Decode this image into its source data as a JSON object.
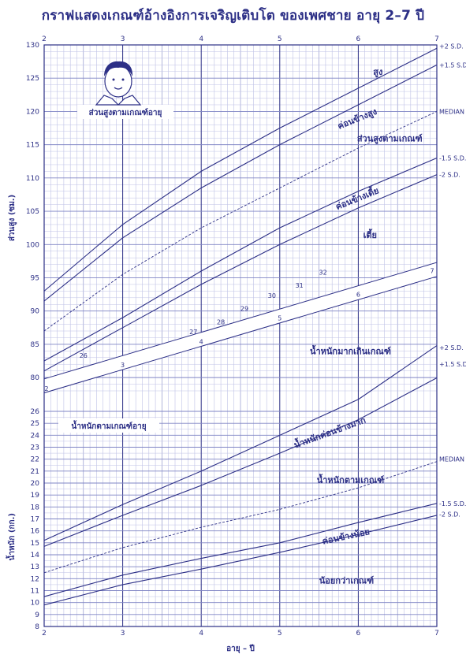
{
  "title": "กราฟแสดงเกณฑ์อ้างอิงการเจริญเติบโต ของเพศชาย อายุ 2–7 ปี",
  "colors": {
    "ink": "#2c2f86",
    "grid": "#7f84c4",
    "minor": "#bfc2e6",
    "paper": "#ffffff"
  },
  "chart_data": [
    {
      "type": "line",
      "panel": "height",
      "title": "ส่วนสูงตามเกณฑ์อายุ",
      "ylabel": "ส่วนสูง (ซม.)",
      "xlabel": "",
      "xlim": [
        2,
        7
      ],
      "ylim": [
        78,
        130
      ],
      "x_ticks": [
        "2",
        "3",
        "4",
        "5",
        "6",
        "7"
      ],
      "y_ticks": [
        "80",
        "85",
        "90",
        "95",
        "100",
        "105",
        "110",
        "115",
        "120",
        "125",
        "130"
      ],
      "x": [
        2,
        3,
        4,
        5,
        6,
        7
      ],
      "series": [
        {
          "name": "+2 S.D.",
          "values": [
            93.0,
            103.0,
            111.0,
            117.5,
            123.5,
            129.5
          ],
          "style": "solid"
        },
        {
          "name": "+1.5 S.D.",
          "values": [
            91.5,
            101.0,
            108.5,
            115.0,
            121.0,
            127.0
          ],
          "style": "solid"
        },
        {
          "name": "MEDIAN",
          "values": [
            87.0,
            95.5,
            102.5,
            108.5,
            114.5,
            120.0
          ],
          "style": "dashed"
        },
        {
          "name": "-1.5 S.D.",
          "values": [
            82.5,
            89.0,
            96.0,
            102.5,
            108.0,
            113.0
          ],
          "style": "solid"
        },
        {
          "name": "-2 S.D.",
          "values": [
            81.0,
            87.5,
            94.0,
            100.0,
            105.5,
            110.5
          ],
          "style": "solid"
        }
      ],
      "zones": [
        "สูง",
        "ค่อนข้างสูง",
        "ส่วนสูงตามเกณฑ์",
        "ค่อนข้างเตี้ย",
        "เตี้ย"
      ]
    },
    {
      "type": "line",
      "panel": "weight",
      "title": "น้ำหนักตามเกณฑ์อายุ",
      "ylabel": "น้ำหนัก (กก.)",
      "xlabel": "อายุ – ปี",
      "xlim": [
        2,
        7
      ],
      "ylim": [
        8,
        32
      ],
      "x_ticks": [
        "2",
        "3",
        "4",
        "5",
        "6",
        "7"
      ],
      "y_ticks": [
        "8",
        "9",
        "10",
        "11",
        "12",
        "13",
        "14",
        "15",
        "16",
        "17",
        "18",
        "19",
        "20",
        "21",
        "22",
        "23",
        "24",
        "25",
        "26"
      ],
      "x": [
        2,
        3,
        4,
        5,
        6,
        7
      ],
      "series": [
        {
          "name": "+2 S.D.",
          "values": [
            15.2,
            18.2,
            21.0,
            24.0,
            27.0,
            31.5
          ],
          "style": "solid"
        },
        {
          "name": "+1.5 S.D.",
          "values": [
            14.7,
            17.3,
            19.8,
            22.5,
            25.3,
            28.8
          ],
          "style": "solid"
        },
        {
          "name": "MEDIAN",
          "values": [
            12.5,
            14.6,
            16.3,
            17.8,
            19.6,
            21.8
          ],
          "style": "dashed"
        },
        {
          "name": "-1.5 S.D.",
          "values": [
            10.5,
            12.3,
            13.7,
            15.0,
            16.7,
            18.3
          ],
          "style": "solid"
        },
        {
          "name": "-2 S.D.",
          "values": [
            9.8,
            11.5,
            12.8,
            14.2,
            15.7,
            17.3
          ],
          "style": "solid"
        }
      ],
      "zones": [
        "น้ำหนักมากเกินเกณฑ์",
        "น้ำหนักค่อนข้างมาก",
        "น้ำหนักตามเกณฑ์",
        "ค่อนข้างน้อย",
        "น้อยกว่าเกณฑ์"
      ]
    }
  ],
  "sd_labels": [
    "+2 S.D.",
    "+1.5 S.D.",
    "MEDIAN",
    "-1.5 S.D.",
    "-2 S.D."
  ],
  "band_ages": [
    "2",
    "3",
    "4",
    "5",
    "6",
    "7"
  ],
  "weight_scale_labels": [
    "26",
    "27",
    "28",
    "29",
    "30",
    "31",
    "32"
  ]
}
